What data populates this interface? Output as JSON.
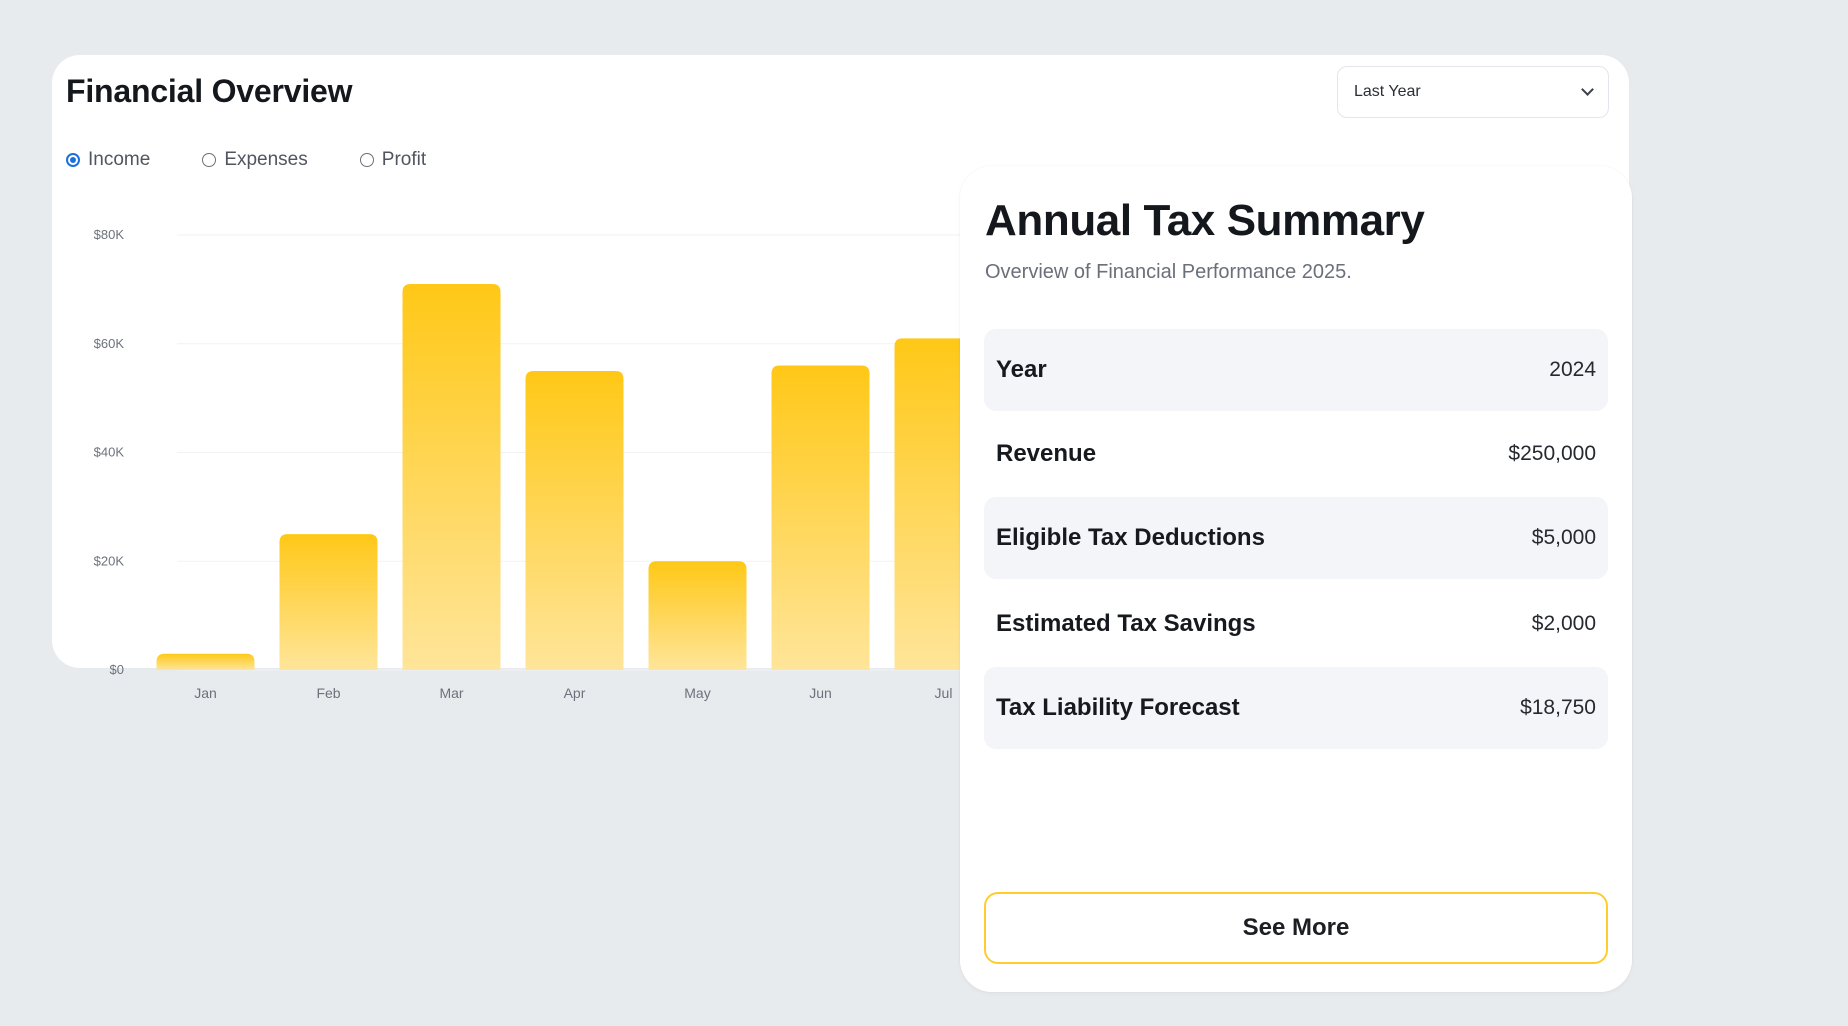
{
  "overview": {
    "title": "Financial Overview",
    "period_select": {
      "value": "Last Year"
    },
    "radios": [
      {
        "label": "Income",
        "checked": true
      },
      {
        "label": "Expenses",
        "checked": false
      },
      {
        "label": "Profit",
        "checked": false
      }
    ]
  },
  "chart_data": {
    "type": "bar",
    "categories": [
      "Jan",
      "Feb",
      "Mar",
      "Apr",
      "May",
      "Jun",
      "Jul"
    ],
    "values": [
      3000,
      25000,
      71000,
      55000,
      20000,
      56000,
      61000
    ],
    "ylim": [
      0,
      80000
    ],
    "y_ticks": [
      "$0",
      "$20K",
      "$40K",
      "$60K",
      "$80K"
    ],
    "bar_color_top": "#ffc817",
    "bar_color_bottom": "#ffe59a",
    "grid": true
  },
  "tax_summary": {
    "title": "Annual Tax Summary",
    "subtitle": "Overview of Financial Performance 2025.",
    "rows": [
      {
        "label": "Year",
        "value": "2024"
      },
      {
        "label": "Revenue",
        "value": "$250,000"
      },
      {
        "label": "Eligible Tax Deductions",
        "value": "$5,000"
      },
      {
        "label": "Estimated Tax Savings",
        "value": "$2,000"
      },
      {
        "label": "Tax Liability Forecast",
        "value": "$18,750"
      }
    ],
    "see_more_label": "See More",
    "accent_color": "#ffcc2e"
  }
}
